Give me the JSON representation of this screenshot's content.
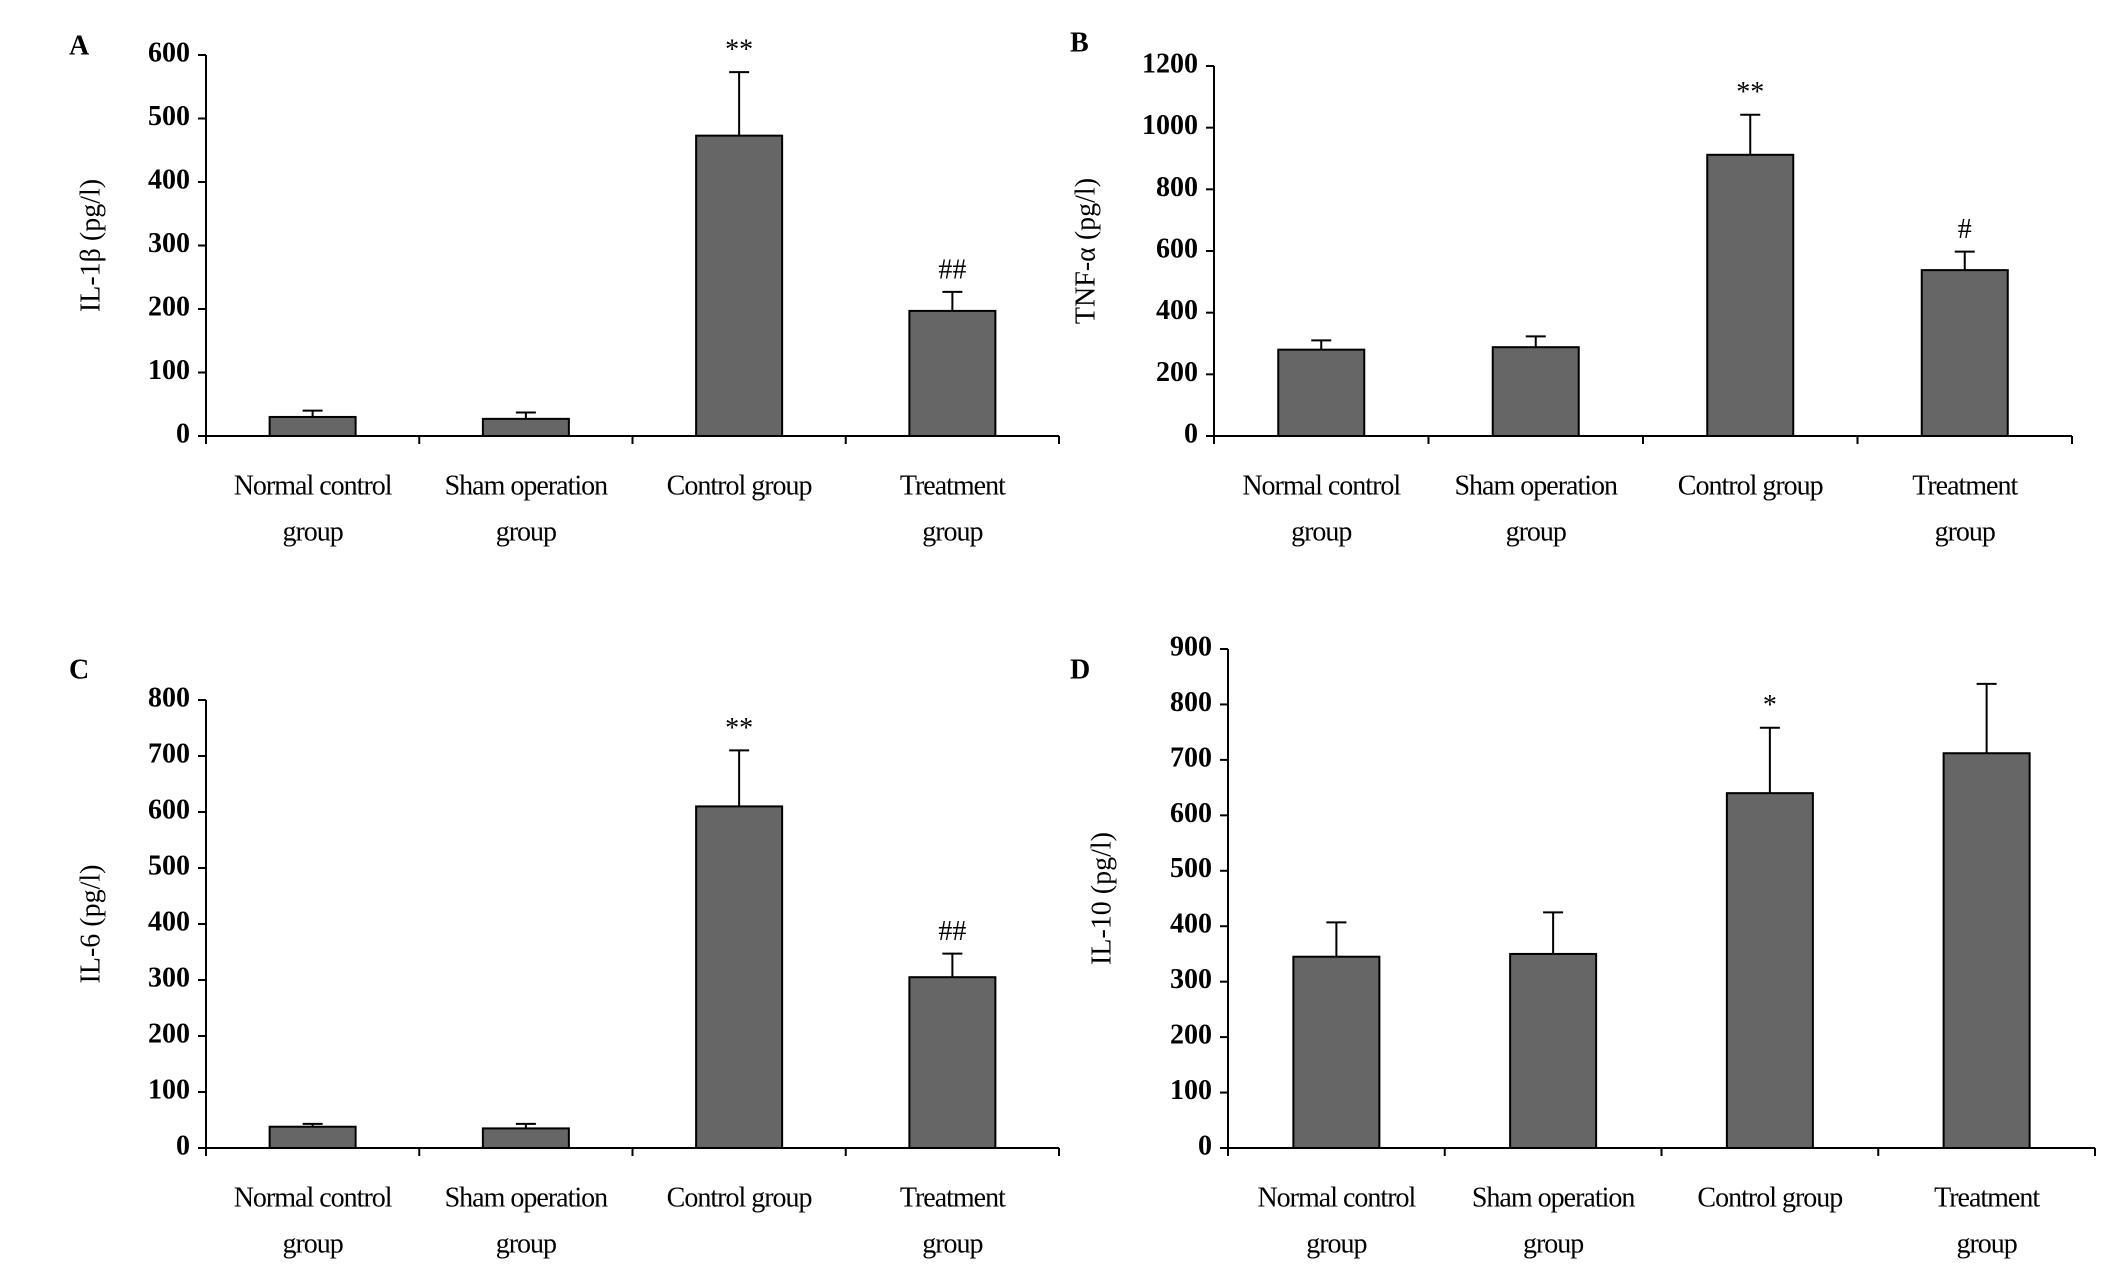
{
  "chart_data": [
    {
      "type": "bar",
      "panel": "A",
      "ylabel": "IL-1β (pg/l)",
      "categories": [
        [
          "Normal control",
          "group"
        ],
        [
          "Sham operation",
          "group"
        ],
        [
          "Control group"
        ],
        [
          "Treatment",
          "group"
        ]
      ],
      "values": [
        30,
        27,
        473,
        197
      ],
      "errors": [
        10,
        10,
        100,
        30
      ],
      "significance": [
        null,
        null,
        "**",
        "##"
      ],
      "color": "#666666",
      "ylim": [
        0,
        600
      ],
      "yticks": [
        0,
        100,
        200,
        300,
        400,
        500,
        600
      ]
    },
    {
      "type": "bar",
      "panel": "B",
      "ylabel": "TNF-α (pg/l)",
      "categories": [
        [
          "Normal control",
          "group"
        ],
        [
          "Sham operation",
          "group"
        ],
        [
          "Control group"
        ],
        [
          "Treatment",
          "group"
        ]
      ],
      "values": [
        280,
        288,
        912,
        538
      ],
      "errors": [
        30,
        35,
        130,
        60
      ],
      "significance": [
        null,
        null,
        "**",
        "#"
      ],
      "color": "#666666",
      "ylim": [
        0,
        1200
      ],
      "yticks": [
        0,
        200,
        400,
        600,
        800,
        1000,
        1200
      ]
    },
    {
      "type": "bar",
      "panel": "C",
      "ylabel": "IL-6 (pg/l)",
      "categories": [
        [
          "Normal control",
          "group"
        ],
        [
          "Sham operation",
          "group"
        ],
        [
          "Control group"
        ],
        [
          "Treatment",
          "group"
        ]
      ],
      "values": [
        38,
        35,
        610,
        305
      ],
      "errors": [
        5,
        8,
        100,
        42
      ],
      "significance": [
        null,
        null,
        "**",
        "##"
      ],
      "color": "#666666",
      "ylim": [
        0,
        800
      ],
      "yticks": [
        0,
        100,
        200,
        300,
        400,
        500,
        600,
        700,
        800
      ]
    },
    {
      "type": "bar",
      "panel": "D",
      "ylabel": "IL-10 (pg/l)",
      "categories": [
        [
          "Normal control",
          "group"
        ],
        [
          "Sham operation",
          "group"
        ],
        [
          "Control group"
        ],
        [
          "Treatment",
          "group"
        ]
      ],
      "values": [
        345,
        350,
        640,
        712
      ],
      "errors": [
        62,
        75,
        118,
        125
      ],
      "significance": [
        null,
        null,
        "*",
        null
      ],
      "color": "#666666",
      "ylim": [
        0,
        900
      ],
      "yticks": [
        0,
        100,
        200,
        300,
        400,
        500,
        600,
        700,
        800,
        900
      ]
    }
  ]
}
